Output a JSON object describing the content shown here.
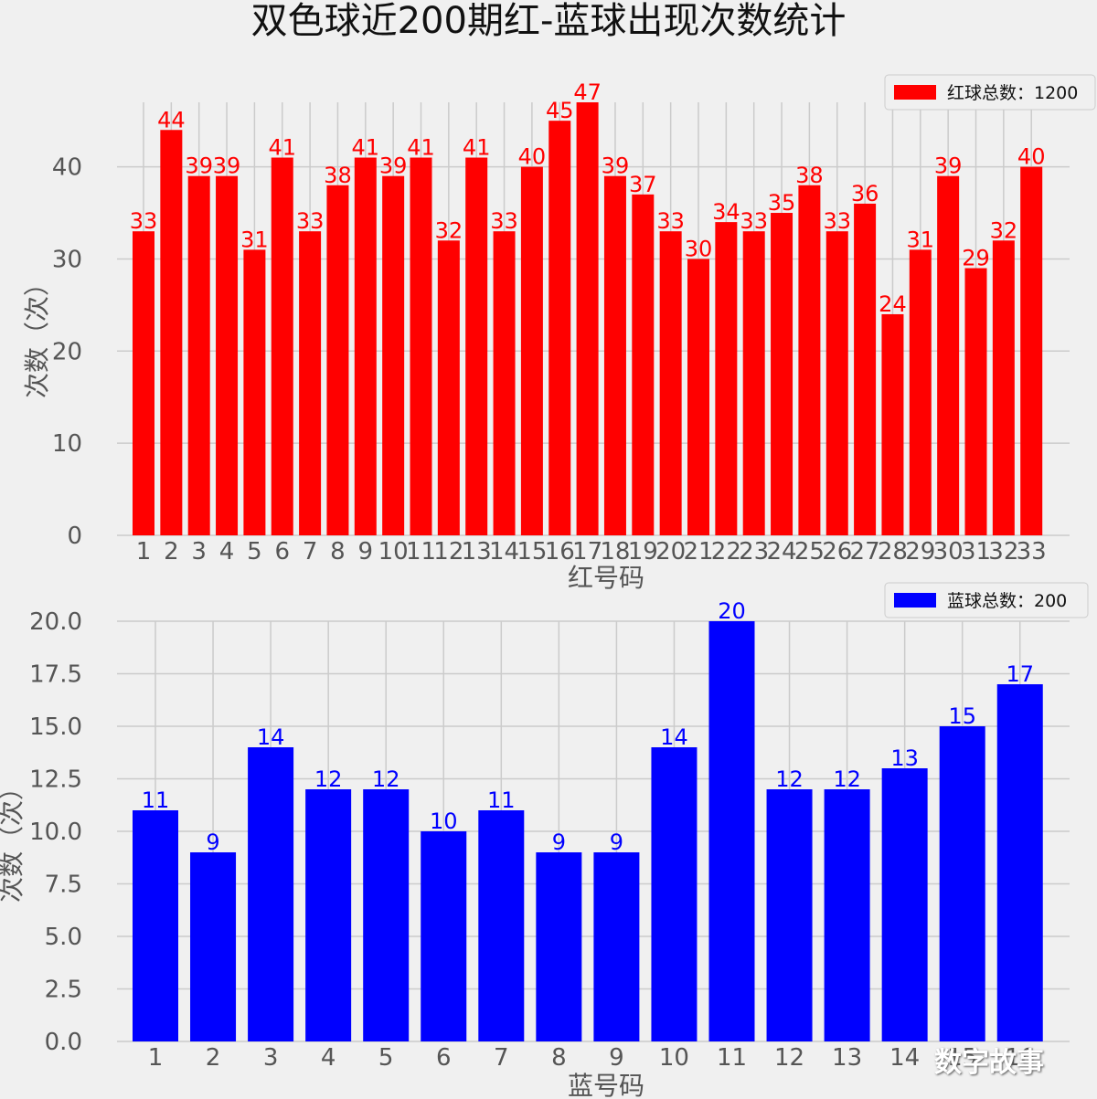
{
  "title": "双色球近200期红-蓝球出现次数统计",
  "watermark": "数字故事",
  "chart_data": [
    {
      "type": "bar",
      "color": "#ff0000",
      "xlabel": "红号码",
      "ylabel": "次数（次）",
      "legend": "红球总数：1200",
      "legend_position": "top-right",
      "grid": true,
      "categories": [
        "1",
        "2",
        "3",
        "4",
        "5",
        "6",
        "7",
        "8",
        "9",
        "10",
        "11",
        "12",
        "13",
        "14",
        "15",
        "16",
        "17",
        "18",
        "19",
        "20",
        "21",
        "22",
        "23",
        "24",
        "25",
        "26",
        "27",
        "28",
        "29",
        "30",
        "31",
        "32",
        "33"
      ],
      "values": [
        33,
        44,
        39,
        39,
        31,
        41,
        33,
        38,
        41,
        39,
        41,
        32,
        41,
        33,
        40,
        45,
        47,
        39,
        37,
        33,
        30,
        34,
        33,
        35,
        38,
        33,
        36,
        24,
        31,
        39,
        29,
        32,
        40
      ],
      "yticks": [
        "0",
        "10",
        "20",
        "30",
        "40"
      ],
      "ylim": [
        0,
        47
      ]
    },
    {
      "type": "bar",
      "color": "#0000ff",
      "xlabel": "蓝号码",
      "ylabel": "次数（次）",
      "legend": "蓝球总数：200",
      "legend_position": "top-right",
      "grid": true,
      "categories": [
        "1",
        "2",
        "3",
        "4",
        "5",
        "6",
        "7",
        "8",
        "9",
        "10",
        "11",
        "12",
        "13",
        "14",
        "15",
        "16"
      ],
      "values": [
        11,
        9,
        14,
        12,
        12,
        10,
        11,
        9,
        9,
        14,
        20,
        12,
        12,
        13,
        15,
        17
      ],
      "yticks": [
        "0.0",
        "2.5",
        "5.0",
        "7.5",
        "10.0",
        "12.5",
        "15.0",
        "17.5",
        "20.0"
      ],
      "ylim": [
        0,
        20
      ]
    }
  ]
}
